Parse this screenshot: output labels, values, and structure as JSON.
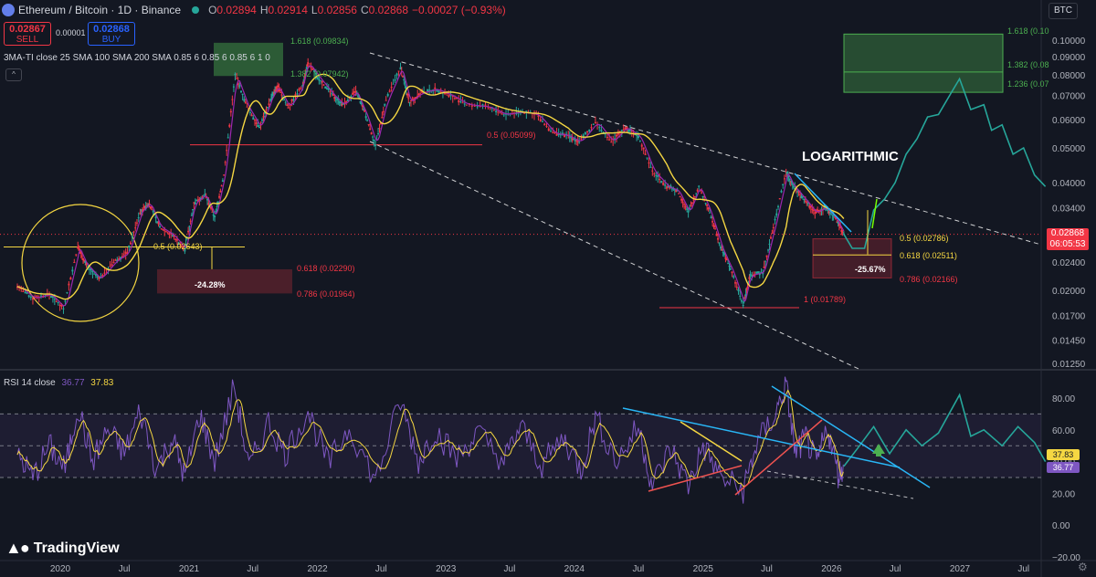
{
  "header": {
    "symbol": "Ethereum / Bitcoin · 1D · Binance",
    "o_label": "O",
    "o": "0.02894",
    "h_label": "H",
    "h": "0.02914",
    "l_label": "L",
    "l": "0.02856",
    "c_label": "C",
    "c": "0.02868",
    "change": "−0.00027 (−0.93%)",
    "currency": "BTC"
  },
  "trade": {
    "sell_price": "0.02867",
    "sell_label": "SELL",
    "spread": "0.00001",
    "buy_price": "0.02868",
    "buy_label": "BUY"
  },
  "indicator_label": "3MA-TI close 25 SMA 100 SMA 200 SMA 0.85 6 0.85 6 0.85 6 1 0",
  "rsi": {
    "label": "RSI 14 close",
    "v1": "36.77",
    "v2": "37.83"
  },
  "price_badge": {
    "price": "0.02868",
    "countdown": "06:05:53"
  },
  "branding": "TradingView",
  "colors": {
    "bg": "#131722",
    "up": "#26a69a",
    "down": "#f23645",
    "sma25": "#9c27b0",
    "sma200": "#f5d742",
    "rsi": "#7e57c2",
    "rsi_ma": "#f5d742",
    "projection": "#26a69a",
    "cyan": "#29b6f6",
    "red": "#ef5350",
    "fib_green": "#4caf50"
  },
  "chart_data": [
    {
      "type": "line",
      "scale": "log",
      "yticks": [
        "0.10000",
        "0.09000",
        "0.08000",
        "0.07000",
        "0.06000",
        "0.05000",
        "0.04000",
        "0.03400",
        "0.02868",
        "0.02400",
        "0.02000",
        "0.01700",
        "0.01450",
        "0.01250"
      ],
      "xticks": [
        "2020",
        "Jul",
        "2021",
        "Jul",
        "2022",
        "Jul",
        "2023",
        "Jul",
        "2024",
        "Jul",
        "2025",
        "Jul",
        "2026",
        "Jul",
        "2027",
        "Jul"
      ],
      "series": [
        {
          "values": [
            [
              "2019-09-01",
              0.0205
            ],
            [
              "2019-10-15",
              0.019
            ],
            [
              "2019-12-01",
              0.0195
            ],
            [
              "2020-01-10",
              0.0178
            ],
            [
              "2020-02-20",
              0.0265
            ],
            [
              "2020-03-15",
              0.0235
            ],
            [
              "2020-04-20",
              0.0215
            ],
            [
              "2020-06-01",
              0.024
            ],
            [
              "2020-07-10",
              0.0255
            ],
            [
              "2020-08-15",
              0.033
            ],
            [
              "2020-09-10",
              0.035
            ],
            [
              "2020-10-10",
              0.03
            ],
            [
              "2020-11-15",
              0.0285
            ],
            [
              "2020-12-20",
              0.026
            ],
            [
              "2021-01-15",
              0.035
            ],
            [
              "2021-02-15",
              0.037
            ],
            [
              "2021-03-15",
              0.032
            ],
            [
              "2021-04-10",
              0.042
            ],
            [
              "2021-05-12",
              0.08
            ],
            [
              "2021-06-15",
              0.065
            ],
            [
              "2021-07-20",
              0.057
            ],
            [
              "2021-08-20",
              0.068
            ],
            [
              "2021-09-10",
              0.074
            ],
            [
              "2021-10-10",
              0.065
            ],
            [
              "2021-11-20",
              0.075
            ],
            [
              "2021-12-05",
              0.086
            ],
            [
              "2022-01-10",
              0.077
            ],
            [
              "2022-02-15",
              0.07
            ],
            [
              "2022-03-15",
              0.066
            ],
            [
              "2022-04-20",
              0.072
            ],
            [
              "2022-05-15",
              0.063
            ],
            [
              "2022-06-15",
              0.051
            ],
            [
              "2022-07-15",
              0.068
            ],
            [
              "2022-08-25",
              0.084
            ],
            [
              "2022-09-20",
              0.067
            ],
            [
              "2022-10-20",
              0.071
            ],
            [
              "2022-12-01",
              0.073
            ],
            [
              "2023-01-15",
              0.07
            ],
            [
              "2023-03-01",
              0.066
            ],
            [
              "2023-05-01",
              0.065
            ],
            [
              "2023-06-15",
              0.062
            ],
            [
              "2023-08-01",
              0.063
            ],
            [
              "2023-09-15",
              0.062
            ],
            [
              "2023-11-01",
              0.055
            ],
            [
              "2023-12-15",
              0.054
            ],
            [
              "2024-01-15",
              0.052
            ],
            [
              "2024-03-01",
              0.059
            ],
            [
              "2024-04-15",
              0.052
            ],
            [
              "2024-05-25",
              0.057
            ],
            [
              "2024-07-01",
              0.054
            ],
            [
              "2024-08-10",
              0.043
            ],
            [
              "2024-09-20",
              0.039
            ],
            [
              "2024-10-20",
              0.038
            ],
            [
              "2024-11-20",
              0.033
            ],
            [
              "2024-12-20",
              0.039
            ],
            [
              "2025-01-20",
              0.033
            ],
            [
              "2025-02-20",
              0.0265
            ],
            [
              "2025-03-20",
              0.023
            ],
            [
              "2025-04-25",
              0.0182
            ],
            [
              "2025-05-15",
              0.022
            ],
            [
              "2025-06-20",
              0.0225
            ],
            [
              "2025-07-20",
              0.03
            ],
            [
              "2025-08-25",
              0.043
            ],
            [
              "2025-09-15",
              0.039
            ],
            [
              "2025-10-15",
              0.036
            ],
            [
              "2025-11-15",
              0.033
            ],
            [
              "2025-12-15",
              0.034
            ],
            [
              "2026-01-10",
              0.032
            ],
            [
              "2026-02-05",
              0.0287
            ]
          ]
        },
        {
          "values": [
            [
              "2026-02-05",
              0.0287
            ],
            [
              "2026-03-01",
              0.0262
            ],
            [
              "2026-04-05",
              0.0262
            ],
            [
              "2026-05-01",
              0.0335
            ],
            [
              "2026-06-01",
              0.036
            ],
            [
              "2026-07-01",
              0.04
            ],
            [
              "2026-08-01",
              0.048
            ],
            [
              "2026-09-01",
              0.053
            ],
            [
              "2026-10-01",
              0.061
            ],
            [
              "2026-11-01",
              0.062
            ],
            [
              "2026-12-10",
              0.072
            ],
            [
              "2026-12-31",
              0.078
            ],
            [
              "2027-02-01",
              0.064
            ],
            [
              "2027-03-10",
              0.066
            ],
            [
              "2027-04-01",
              0.056
            ],
            [
              "2027-05-01",
              0.058
            ],
            [
              "2027-06-01",
              0.048
            ],
            [
              "2027-07-01",
              0.05
            ],
            [
              "2027-08-01",
              0.042
            ],
            [
              "2027-09-01",
              0.039
            ]
          ]
        }
      ],
      "annotations": [
        {
          "text": "LOGARITHMIC"
        },
        {
          "text": "-24.28%"
        },
        {
          "text": "-25.67%"
        },
        {
          "text": "1.618 (0.09834)"
        },
        {
          "text": "1.382 (0.07942)"
        },
        {
          "text": "0.5 (0.05099)"
        },
        {
          "text": "0.5 (0.02643)"
        },
        {
          "text": "0.618 (0.02290)"
        },
        {
          "text": "0.786 (0.01964)"
        },
        {
          "text": "1 (0.01789)"
        },
        {
          "text": "0.5 (0.02786)"
        },
        {
          "text": "0.618 (0.02511)"
        },
        {
          "text": "0.786 (0.02166)"
        },
        {
          "text": "1.618 (0.10"
        },
        {
          "text": "1.382 (0.08"
        },
        {
          "text": "1.236 (0.07"
        }
      ]
    },
    {
      "type": "line",
      "yticks": [
        "80.00",
        "60.00",
        "40.00",
        "20.00",
        "0.00",
        "−20.00"
      ],
      "ylim": [
        -20,
        90
      ],
      "levels": [
        70,
        50,
        30
      ],
      "series": [
        {
          "values": [
            [
              "2019-09-01",
              45
            ],
            [
              "2019-10-15",
              30
            ],
            [
              "2019-12-01",
              50
            ],
            [
              "2020-01-15",
              35
            ],
            [
              "2020-02-20",
              75
            ],
            [
              "2020-04-01",
              40
            ],
            [
              "2020-05-15",
              60
            ],
            [
              "2020-07-01",
              45
            ],
            [
              "2020-08-15",
              72
            ],
            [
              "2020-10-01",
              35
            ],
            [
              "2020-11-15",
              55
            ],
            [
              "2020-12-20",
              30
            ],
            [
              "2021-02-01",
              70
            ],
            [
              "2021-03-15",
              40
            ],
            [
              "2021-05-10",
              88
            ],
            [
              "2021-06-20",
              35
            ],
            [
              "2021-08-15",
              65
            ],
            [
              "2021-10-01",
              45
            ],
            [
              "2021-12-05",
              72
            ],
            [
              "2022-02-01",
              38
            ],
            [
              "2022-04-01",
              62
            ],
            [
              "2022-06-15",
              28
            ],
            [
              "2022-08-25",
              78
            ],
            [
              "2022-10-15",
              40
            ],
            [
              "2022-12-01",
              60
            ],
            [
              "2023-02-01",
              42
            ],
            [
              "2023-04-01",
              58
            ],
            [
              "2023-06-15",
              40
            ],
            [
              "2023-08-01",
              62
            ],
            [
              "2023-10-01",
              38
            ],
            [
              "2023-12-01",
              55
            ],
            [
              "2024-01-20",
              35
            ],
            [
              "2024-03-01",
              68
            ],
            [
              "2024-05-01",
              40
            ],
            [
              "2024-07-01",
              62
            ],
            [
              "2024-08-10",
              25
            ],
            [
              "2024-10-01",
              48
            ],
            [
              "2024-11-20",
              25
            ],
            [
              "2025-01-01",
              50
            ],
            [
              "2025-02-20",
              30
            ],
            [
              "2025-04-25",
              22
            ],
            [
              "2025-06-01",
              50
            ],
            [
              "2025-07-25",
              70
            ],
            [
              "2025-08-25",
              88
            ],
            [
              "2025-09-20",
              45
            ],
            [
              "2025-10-20",
              55
            ],
            [
              "2025-11-20",
              38
            ],
            [
              "2025-12-20",
              62
            ],
            [
              "2026-01-20",
              32
            ],
            [
              "2026-02-05",
              36.77
            ]
          ]
        },
        {
          "values": [
            [
              "2026-02-05",
              37
            ],
            [
              "2026-03-15",
              48
            ],
            [
              "2026-05-01",
              62
            ],
            [
              "2026-06-15",
              45
            ],
            [
              "2026-08-01",
              60
            ],
            [
              "2026-09-15",
              50
            ],
            [
              "2026-11-01",
              58
            ],
            [
              "2026-12-31",
              82
            ],
            [
              "2027-02-01",
              56
            ],
            [
              "2027-03-10",
              60
            ],
            [
              "2027-05-01",
              50
            ],
            [
              "2027-06-15",
              62
            ],
            [
              "2027-08-01",
              52
            ],
            [
              "2027-09-01",
              40
            ]
          ]
        }
      ]
    }
  ]
}
